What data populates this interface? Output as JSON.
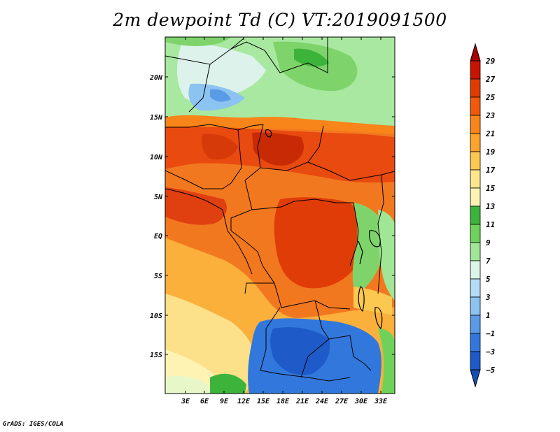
{
  "title": "2m dewpoint Td (C) VT:2019091500",
  "credit": "GrADS: IGES/COLA",
  "lat_labels": [
    "20N",
    "15N",
    "10N",
    "5N",
    "EQ",
    "5S",
    "10S",
    "15S"
  ],
  "lon_labels": [
    "3E",
    "6E",
    "9E",
    "12E",
    "15E",
    "18E",
    "21E",
    "24E",
    "27E",
    "30E",
    "33E"
  ],
  "colorbar": {
    "labels": [
      "29",
      "27",
      "25",
      "23",
      "21",
      "19",
      "17",
      "15",
      "13",
      "11",
      "9",
      "7",
      "5",
      "3",
      "1",
      "−1",
      "−3",
      "−5"
    ],
    "colors": [
      "#a60000",
      "#c81400",
      "#e13c00",
      "#f05a0a",
      "#f7851a",
      "#fba32b",
      "#fdc850",
      "#fde68c",
      "#fff3b4",
      "#3cb43c",
      "#6ed25a",
      "#a0e696",
      "#dcf5e6",
      "#b4dcf5",
      "#8cc3f0",
      "#5a9be6",
      "#3278dc",
      "#1e5ac8",
      "#1450b4"
    ]
  },
  "icons": {
    "top_arrow": "triangle-up-icon",
    "bottom_arrow": "triangle-down-icon"
  }
}
